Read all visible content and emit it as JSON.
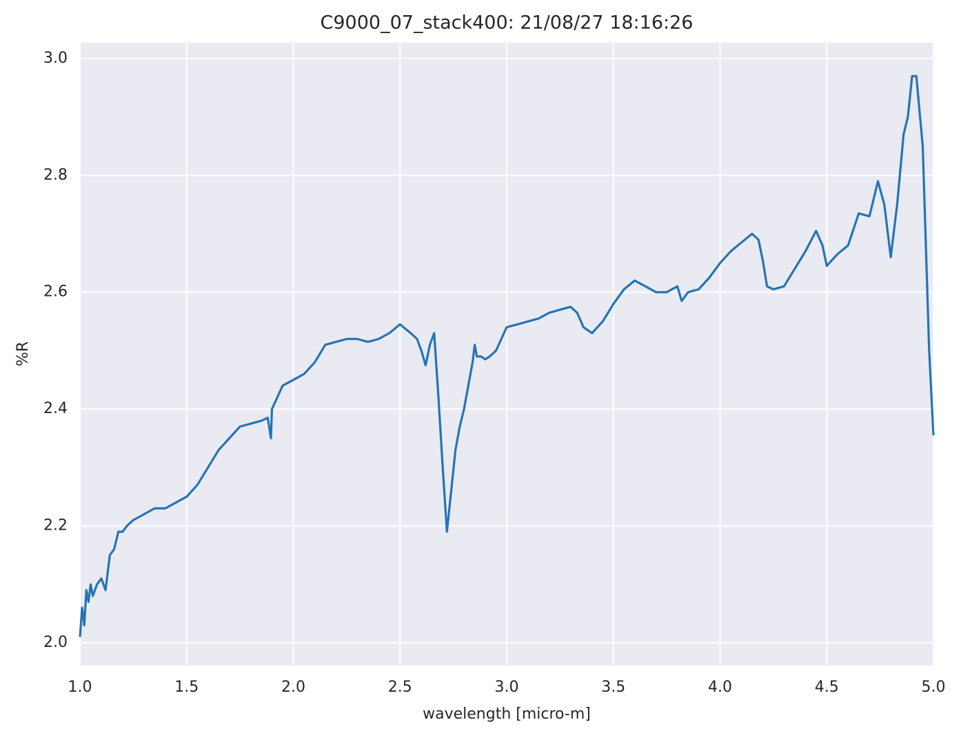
{
  "chart_data": {
    "type": "line",
    "title": "C9000_07_stack400:  21/08/27 18:16:26",
    "x_label": "wavelength [micro-m]",
    "y_label": "%R",
    "xlim": [
      1,
      5
    ],
    "ylim": [
      1.961,
      3.027
    ],
    "xticks": [
      {
        "value": 1,
        "label": "1.0"
      },
      1.5,
      {
        "value": 2,
        "label": "2.0"
      },
      2.5,
      {
        "value": 3,
        "label": "3.0"
      },
      3.5,
      {
        "value": 4,
        "label": "4.0"
      },
      4.5,
      {
        "value": 5,
        "label": "5.0"
      }
    ],
    "yticks": [
      {
        "value": 2,
        "label": "2.0"
      },
      2.2,
      2.4,
      2.6,
      2.8,
      {
        "value": 3,
        "label": "3.0"
      }
    ],
    "grid": true,
    "x": [
      1.0,
      1.01,
      1.02,
      1.03,
      1.04,
      1.05,
      1.06,
      1.08,
      1.1,
      1.12,
      1.14,
      1.16,
      1.18,
      1.2,
      1.22,
      1.25,
      1.3,
      1.35,
      1.4,
      1.45,
      1.5,
      1.55,
      1.6,
      1.65,
      1.7,
      1.75,
      1.8,
      1.85,
      1.88,
      1.895,
      1.9,
      1.95,
      2.0,
      2.05,
      2.1,
      2.15,
      2.2,
      2.25,
      2.3,
      2.35,
      2.4,
      2.45,
      2.5,
      2.55,
      2.58,
      2.6,
      2.62,
      2.64,
      2.66,
      2.68,
      2.7,
      2.72,
      2.74,
      2.76,
      2.78,
      2.8,
      2.82,
      2.84,
      2.85,
      2.86,
      2.88,
      2.9,
      2.92,
      2.95,
      3.0,
      3.05,
      3.1,
      3.15,
      3.2,
      3.25,
      3.3,
      3.33,
      3.36,
      3.4,
      3.45,
      3.5,
      3.55,
      3.6,
      3.65,
      3.7,
      3.75,
      3.8,
      3.82,
      3.85,
      3.9,
      3.95,
      4.0,
      4.05,
      4.1,
      4.15,
      4.18,
      4.2,
      4.22,
      4.25,
      4.3,
      4.35,
      4.4,
      4.45,
      4.48,
      4.5,
      4.55,
      4.6,
      4.65,
      4.7,
      4.74,
      4.77,
      4.8,
      4.83,
      4.86,
      4.88,
      4.9,
      4.92,
      4.95,
      4.98,
      5.0
    ],
    "series": [
      {
        "color": "#2474b5",
        "values": [
          2.01,
          2.06,
          2.03,
          2.09,
          2.07,
          2.1,
          2.08,
          2.1,
          2.11,
          2.09,
          2.15,
          2.16,
          2.19,
          2.19,
          2.2,
          2.21,
          2.22,
          2.23,
          2.23,
          2.24,
          2.25,
          2.27,
          2.3,
          2.33,
          2.35,
          2.37,
          2.375,
          2.38,
          2.385,
          2.35,
          2.4,
          2.44,
          2.45,
          2.46,
          2.48,
          2.51,
          2.515,
          2.52,
          2.52,
          2.515,
          2.52,
          2.53,
          2.545,
          2.53,
          2.52,
          2.5,
          2.475,
          2.51,
          2.53,
          2.42,
          2.3,
          2.19,
          2.26,
          2.33,
          2.37,
          2.4,
          2.44,
          2.48,
          2.51,
          2.49,
          2.49,
          2.485,
          2.49,
          2.5,
          2.54,
          2.545,
          2.55,
          2.555,
          2.565,
          2.57,
          2.575,
          2.565,
          2.54,
          2.53,
          2.55,
          2.58,
          2.605,
          2.62,
          2.61,
          2.6,
          2.6,
          2.61,
          2.585,
          2.6,
          2.605,
          2.625,
          2.65,
          2.67,
          2.685,
          2.7,
          2.69,
          2.655,
          2.61,
          2.605,
          2.61,
          2.64,
          2.67,
          2.705,
          2.68,
          2.645,
          2.665,
          2.68,
          2.735,
          2.73,
          2.79,
          2.75,
          2.66,
          2.75,
          2.87,
          2.9,
          2.97,
          2.97,
          2.85,
          2.5,
          2.355
        ]
      }
    ]
  }
}
